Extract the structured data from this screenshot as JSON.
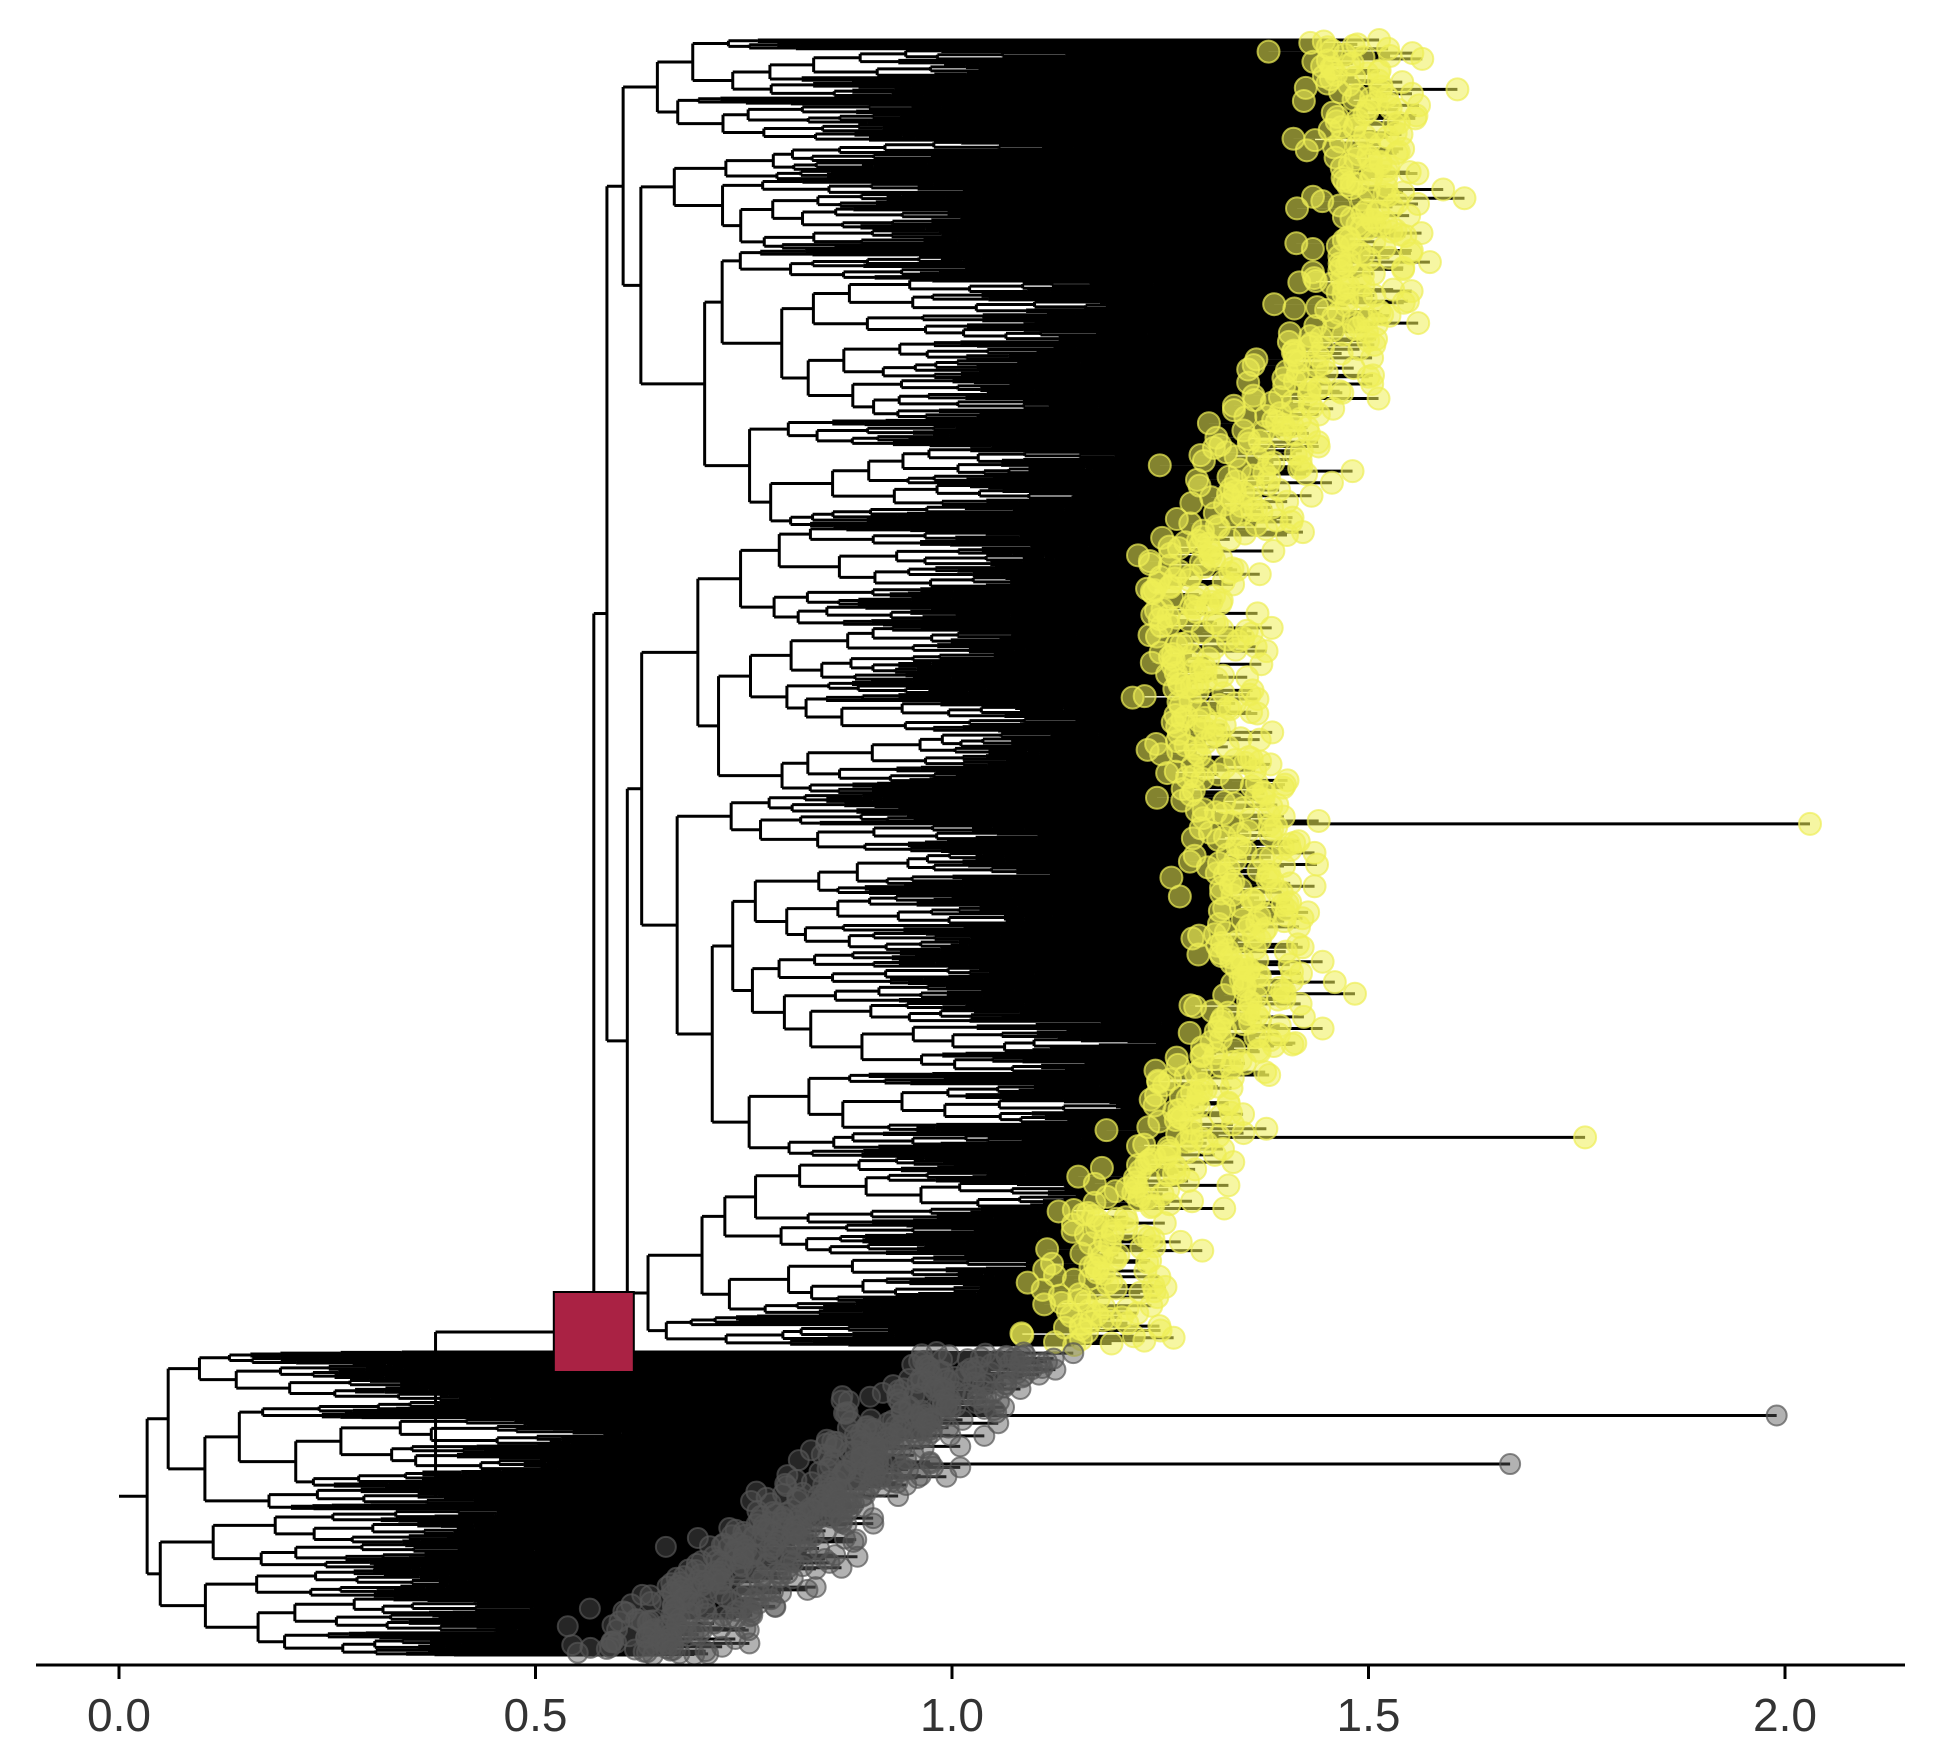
{
  "chart_data": {
    "type": "tree",
    "title": "",
    "xlabel": "",
    "ylabel": "",
    "xlim": [
      -0.1,
      2.15
    ],
    "x_ticks": [
      0.0,
      0.5,
      1.0,
      1.5,
      2.0
    ],
    "x_tick_labels": [
      "0.0",
      "0.5",
      "1.0",
      "1.5",
      "2.0"
    ],
    "grid": false,
    "legend": "none",
    "colors": {
      "branch": "#000000",
      "tip_clade_a": "#eeee55",
      "tip_clade_b": "#555555",
      "marker": "#aa2244"
    },
    "series": [
      {
        "tip_color": "#eeee55",
        "tip_count": 900
      },
      {
        "tip_color": "#555555",
        "tip_count": 550
      }
    ],
    "node_marker": {
      "x": 0.57,
      "shape": "square",
      "color": "#aa2244"
    },
    "notable_tips": [
      {
        "x": 2.03,
        "clade": "a"
      },
      {
        "x": 1.99,
        "clade": "b"
      },
      {
        "x": 1.76,
        "clade": "a"
      },
      {
        "x": 1.67,
        "clade": "b"
      }
    ]
  }
}
